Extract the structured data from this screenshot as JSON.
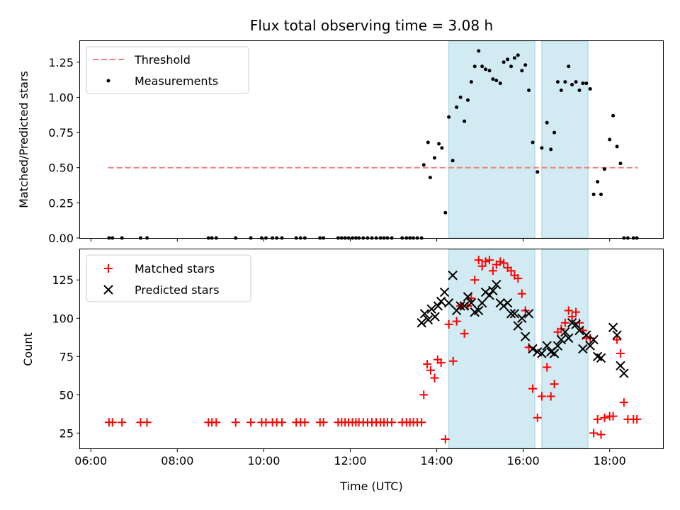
{
  "chart_data": [
    {
      "type": "scatter",
      "title": "Flux total observing time = 3.08 h",
      "xlabel": "",
      "ylabel": "Matched/Predicted stars",
      "ylim": [
        0,
        1.4
      ],
      "xlim": [
        5.75,
        19.25
      ],
      "yticks": [
        0.0,
        0.25,
        0.5,
        0.75,
        1.0,
        1.25
      ],
      "ytick_labels": [
        "0.00",
        "0.25",
        "0.50",
        "0.75",
        "1.00",
        "1.25"
      ],
      "legend_position": "top-left",
      "shaded_regions": [
        [
          14.28,
          16.27
        ],
        [
          16.43,
          17.5
        ]
      ],
      "shade_color": "#add8e6",
      "series": [
        {
          "name": "Threshold",
          "kind": "dashed-line",
          "color": "#f08080",
          "x": [
            6.4,
            18.65
          ],
          "y": [
            0.5,
            0.5
          ]
        },
        {
          "name": "Measurements",
          "kind": "dots",
          "color": "#000000",
          "x": [
            6.42,
            6.5,
            6.72,
            7.15,
            7.3,
            8.72,
            8.8,
            8.9,
            9.35,
            9.7,
            9.95,
            10.05,
            10.2,
            10.3,
            10.42,
            10.75,
            10.85,
            10.95,
            11.3,
            11.38,
            11.72,
            11.8,
            11.88,
            11.96,
            12.05,
            12.13,
            12.2,
            12.3,
            12.4,
            12.5,
            12.6,
            12.7,
            12.78,
            12.86,
            12.96,
            13.2,
            13.3,
            13.38,
            13.46,
            13.55,
            13.65,
            13.7,
            13.8,
            13.85,
            13.95,
            14.05,
            14.12,
            14.2,
            14.28,
            14.37,
            14.46,
            14.55,
            14.64,
            14.72,
            14.8,
            14.88,
            14.97,
            15.05,
            15.13,
            15.22,
            15.3,
            15.38,
            15.47,
            15.55,
            15.64,
            15.72,
            15.8,
            15.88,
            15.97,
            16.05,
            16.13,
            16.22,
            16.33,
            16.43,
            16.55,
            16.64,
            16.72,
            16.8,
            16.88,
            16.97,
            17.05,
            17.13,
            17.22,
            17.3,
            17.38,
            17.46,
            17.55,
            17.63,
            17.72,
            17.8,
            17.88,
            18.0,
            18.08,
            18.17,
            18.25,
            18.33,
            18.42,
            18.55,
            18.63
          ],
          "y": [
            0.0,
            0.0,
            0.0,
            0.0,
            0.0,
            0.0,
            0.0,
            0.0,
            0.0,
            0.0,
            0.0,
            0.0,
            0.0,
            0.0,
            0.0,
            0.0,
            0.0,
            0.0,
            0.0,
            0.0,
            0.0,
            0.0,
            0.0,
            0.0,
            0.0,
            0.0,
            0.0,
            0.0,
            0.0,
            0.0,
            0.0,
            0.0,
            0.0,
            0.0,
            0.0,
            0.0,
            0.0,
            0.0,
            0.0,
            0.0,
            0.0,
            0.52,
            0.68,
            0.43,
            0.57,
            0.67,
            0.64,
            0.18,
            0.86,
            0.55,
            0.93,
            1.0,
            0.83,
            0.98,
            1.11,
            1.22,
            1.33,
            1.22,
            1.2,
            1.19,
            1.13,
            1.12,
            1.1,
            1.25,
            1.27,
            1.22,
            1.28,
            1.3,
            1.19,
            1.23,
            1.05,
            0.68,
            0.47,
            0.64,
            0.82,
            0.63,
            0.75,
            1.11,
            1.05,
            1.11,
            1.22,
            1.09,
            1.11,
            1.05,
            1.1,
            1.1,
            1.06,
            0.31,
            0.4,
            0.31,
            0.49,
            0.7,
            0.87,
            0.65,
            0.53,
            0.0,
            0.0,
            0.0,
            0.0
          ]
        }
      ]
    },
    {
      "type": "scatter",
      "title": "",
      "xlabel": "Time (UTC)",
      "ylabel": "Count",
      "ylim": [
        15,
        145
      ],
      "xlim": [
        5.75,
        19.25
      ],
      "yticks": [
        25,
        50,
        75,
        100,
        125
      ],
      "ytick_labels": [
        "25",
        "50",
        "75",
        "100",
        "125"
      ],
      "xticks": [
        6,
        8,
        10,
        12,
        14,
        16,
        18
      ],
      "xtick_labels": [
        "06:00",
        "08:00",
        "10:00",
        "12:00",
        "14:00",
        "16:00",
        "18:00"
      ],
      "legend_position": "top-left",
      "shaded_regions": [
        [
          14.28,
          16.27
        ],
        [
          16.43,
          17.5
        ]
      ],
      "shade_color": "#add8e6",
      "series": [
        {
          "name": "Matched stars",
          "kind": "plus",
          "color": "#ff0000",
          "x": [
            6.42,
            6.5,
            6.72,
            7.15,
            7.3,
            8.72,
            8.8,
            8.9,
            9.35,
            9.7,
            9.95,
            10.05,
            10.2,
            10.3,
            10.42,
            10.75,
            10.85,
            10.95,
            11.3,
            11.38,
            11.72,
            11.8,
            11.88,
            11.96,
            12.05,
            12.13,
            12.2,
            12.3,
            12.4,
            12.5,
            12.6,
            12.7,
            12.78,
            12.86,
            12.96,
            13.2,
            13.3,
            13.38,
            13.46,
            13.55,
            13.65,
            13.7,
            13.78,
            13.86,
            13.95,
            14.02,
            14.1,
            14.2,
            14.28,
            14.38,
            14.46,
            14.55,
            14.64,
            14.72,
            14.8,
            14.88,
            14.97,
            15.05,
            15.13,
            15.22,
            15.3,
            15.38,
            15.47,
            15.55,
            15.64,
            15.72,
            15.8,
            15.88,
            15.97,
            16.05,
            16.13,
            16.22,
            16.33,
            16.43,
            16.55,
            16.64,
            16.72,
            16.8,
            16.88,
            16.97,
            17.05,
            17.13,
            17.22,
            17.3,
            17.38,
            17.46,
            17.55,
            17.63,
            17.72,
            17.8,
            17.88,
            18.0,
            18.08,
            18.17,
            18.25,
            18.33,
            18.42,
            18.55,
            18.63
          ],
          "y": [
            32,
            32,
            32,
            32,
            32,
            32,
            32,
            32,
            32,
            32,
            32,
            32,
            32,
            32,
            32,
            32,
            32,
            32,
            32,
            32,
            32,
            32,
            32,
            32,
            32,
            32,
            32,
            32,
            32,
            32,
            32,
            32,
            32,
            32,
            32,
            32,
            32,
            32,
            32,
            32,
            32,
            50,
            70,
            66,
            61,
            73,
            71,
            21,
            96,
            72,
            98,
            108,
            90,
            108,
            113,
            125,
            138,
            134,
            137,
            138,
            131,
            135,
            137,
            136,
            133,
            131,
            128,
            126,
            116,
            105,
            81,
            54,
            35,
            49,
            68,
            49,
            57,
            91,
            93,
            97,
            105,
            101,
            104,
            97,
            92,
            87,
            87,
            25,
            34,
            24,
            35,
            36,
            36,
            86,
            77,
            45,
            34,
            34,
            34
          ]
        },
        {
          "name": "Predicted stars",
          "kind": "cross",
          "color": "#000000",
          "x": [
            13.65,
            13.72,
            13.8,
            13.88,
            13.96,
            14.03,
            14.1,
            14.18,
            14.28,
            14.37,
            14.46,
            14.55,
            14.64,
            14.72,
            14.8,
            14.88,
            14.97,
            15.05,
            15.13,
            15.22,
            15.3,
            15.38,
            15.47,
            15.55,
            15.64,
            15.72,
            15.8,
            15.88,
            15.97,
            16.05,
            16.13,
            16.22,
            16.33,
            16.43,
            16.55,
            16.64,
            16.72,
            16.8,
            16.88,
            16.97,
            17.05,
            17.13,
            17.22,
            17.3,
            17.38,
            17.46,
            17.55,
            17.63,
            17.72,
            17.8,
            18.08,
            18.17,
            18.25,
            18.33
          ],
          "y": [
            97,
            103,
            99,
            106,
            101,
            108,
            111,
            117,
            110,
            128,
            105,
            108,
            108,
            114,
            110,
            104,
            105,
            110,
            117,
            115,
            118,
            122,
            110,
            108,
            110,
            103,
            103,
            95,
            100,
            88,
            103,
            80,
            78,
            77,
            82,
            78,
            77,
            82,
            86,
            91,
            87,
            97,
            96,
            92,
            80,
            89,
            82,
            86,
            75,
            74,
            94,
            89,
            69,
            64
          ]
        }
      ]
    }
  ]
}
